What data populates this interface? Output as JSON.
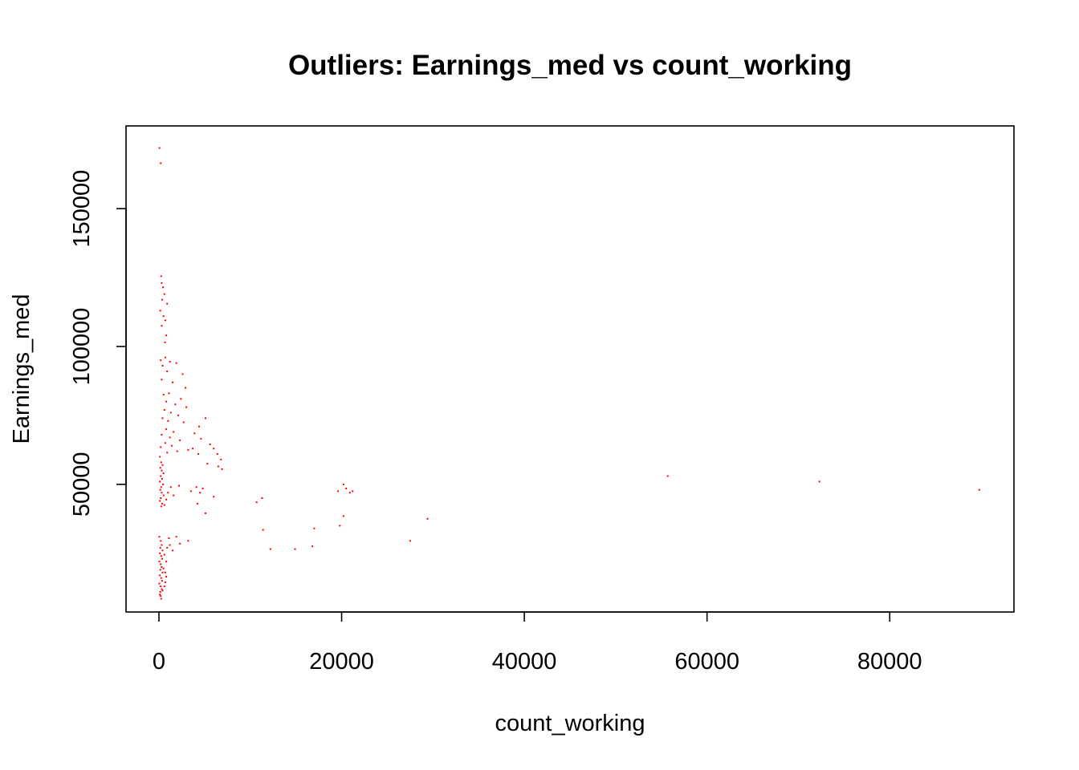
{
  "chart_data": {
    "type": "scatter",
    "title": "Outliers: Earnings_med vs count_working",
    "xlabel": "count_working",
    "ylabel": "Earnings_med",
    "xlim": [
      -3600,
      93600
    ],
    "ylim": [
      3700,
      180000
    ],
    "x_ticks": [
      0,
      20000,
      40000,
      60000,
      80000
    ],
    "x_tick_labels": [
      "0",
      "20000",
      "40000",
      "60000",
      "80000"
    ],
    "y_ticks": [
      50000,
      100000,
      150000
    ],
    "y_tick_labels": [
      "50000",
      "100000",
      "150000"
    ],
    "grid": false,
    "point_color": "#ff0000",
    "series": [
      {
        "points": [
          [
            60,
            172000
          ],
          [
            200,
            166500
          ],
          [
            250,
            125500
          ],
          [
            300,
            123000
          ],
          [
            450,
            121500
          ],
          [
            600,
            119000
          ],
          [
            350,
            117000
          ],
          [
            900,
            115500
          ],
          [
            150,
            113000
          ],
          [
            500,
            111000
          ],
          [
            700,
            109500
          ],
          [
            300,
            107500
          ],
          [
            800,
            104000
          ],
          [
            650,
            101500
          ],
          [
            700,
            96000
          ],
          [
            200,
            95000
          ],
          [
            1200,
            94500
          ],
          [
            400,
            93000
          ],
          [
            1900,
            94000
          ],
          [
            900,
            91000
          ],
          [
            2600,
            90000
          ],
          [
            300,
            88000
          ],
          [
            1500,
            87000
          ],
          [
            2900,
            85000
          ],
          [
            1100,
            83000
          ],
          [
            500,
            82500
          ],
          [
            2400,
            81000
          ],
          [
            800,
            80000
          ],
          [
            1800,
            79000
          ],
          [
            3000,
            78000
          ],
          [
            600,
            77000
          ],
          [
            1300,
            76000
          ],
          [
            2100,
            75000
          ],
          [
            400,
            74000
          ],
          [
            1000,
            73000
          ],
          [
            2700,
            72500
          ],
          [
            5100,
            74000
          ],
          [
            4400,
            71000
          ],
          [
            800,
            70000
          ],
          [
            1600,
            69000
          ],
          [
            300,
            68000
          ],
          [
            1200,
            67000
          ],
          [
            3900,
            68500
          ],
          [
            4600,
            66500
          ],
          [
            2300,
            66000
          ],
          [
            700,
            65000
          ],
          [
            1400,
            64000
          ],
          [
            200,
            63500
          ],
          [
            5600,
            64500
          ],
          [
            6000,
            63000
          ],
          [
            3200,
            62500
          ],
          [
            2000,
            62000
          ],
          [
            4300,
            61000
          ],
          [
            900,
            61500
          ],
          [
            6400,
            61000
          ],
          [
            6800,
            59000
          ],
          [
            5300,
            57500
          ],
          [
            6500,
            56500
          ],
          [
            6900,
            55500
          ],
          [
            3700,
            63000
          ],
          [
            100,
            60000
          ],
          [
            250,
            58000
          ],
          [
            400,
            57000
          ],
          [
            150,
            56000
          ],
          [
            300,
            55000
          ],
          [
            500,
            54000
          ],
          [
            200,
            53000
          ],
          [
            350,
            52000
          ],
          [
            100,
            51000
          ],
          [
            450,
            50000
          ],
          [
            250,
            49000
          ],
          [
            150,
            48000
          ],
          [
            300,
            47000
          ],
          [
            500,
            46000
          ],
          [
            200,
            45000
          ],
          [
            100,
            44000
          ],
          [
            350,
            43000
          ],
          [
            250,
            42000
          ],
          [
            600,
            42500
          ],
          [
            800,
            44500
          ],
          [
            1000,
            47000
          ],
          [
            1300,
            49000
          ],
          [
            1600,
            46000
          ],
          [
            2200,
            49500
          ],
          [
            3500,
            47500
          ],
          [
            4100,
            49000
          ],
          [
            4800,
            48500
          ],
          [
            4500,
            47000
          ],
          [
            6000,
            45500
          ],
          [
            4200,
            43000
          ],
          [
            5100,
            39500
          ],
          [
            10700,
            43500
          ],
          [
            11300,
            45000
          ],
          [
            11400,
            33500
          ],
          [
            12200,
            26500
          ],
          [
            14900,
            26500
          ],
          [
            16800,
            27500
          ],
          [
            17000,
            34000
          ],
          [
            19600,
            47500
          ],
          [
            20200,
            50000
          ],
          [
            20500,
            48500
          ],
          [
            20900,
            47000
          ],
          [
            21200,
            47500
          ],
          [
            19800,
            35000
          ],
          [
            20200,
            38500
          ],
          [
            29400,
            37500
          ],
          [
            27500,
            29500
          ],
          [
            55700,
            53000
          ],
          [
            72300,
            51000
          ],
          [
            89800,
            48000
          ],
          [
            50,
            31000
          ],
          [
            200,
            29500
          ],
          [
            300,
            28000
          ],
          [
            150,
            27000
          ],
          [
            400,
            26000
          ],
          [
            100,
            25000
          ],
          [
            250,
            24000
          ],
          [
            350,
            23000
          ],
          [
            50,
            22000
          ],
          [
            200,
            21000
          ],
          [
            300,
            20000
          ],
          [
            150,
            19000
          ],
          [
            400,
            18000
          ],
          [
            100,
            17000
          ],
          [
            250,
            16000
          ],
          [
            350,
            15000
          ],
          [
            50,
            14000
          ],
          [
            200,
            13000
          ],
          [
            300,
            12000
          ],
          [
            150,
            11000
          ],
          [
            100,
            10000
          ],
          [
            200,
            9500
          ],
          [
            250,
            8500
          ],
          [
            400,
            11500
          ],
          [
            600,
            13000
          ],
          [
            700,
            14500
          ],
          [
            800,
            16500
          ],
          [
            700,
            18000
          ],
          [
            500,
            19500
          ],
          [
            800,
            22000
          ],
          [
            600,
            24500
          ],
          [
            900,
            27000
          ],
          [
            1200,
            28000
          ],
          [
            1500,
            26000
          ],
          [
            1900,
            31000
          ],
          [
            1100,
            30500
          ],
          [
            2300,
            28500
          ],
          [
            3200,
            29500
          ]
        ]
      }
    ]
  }
}
